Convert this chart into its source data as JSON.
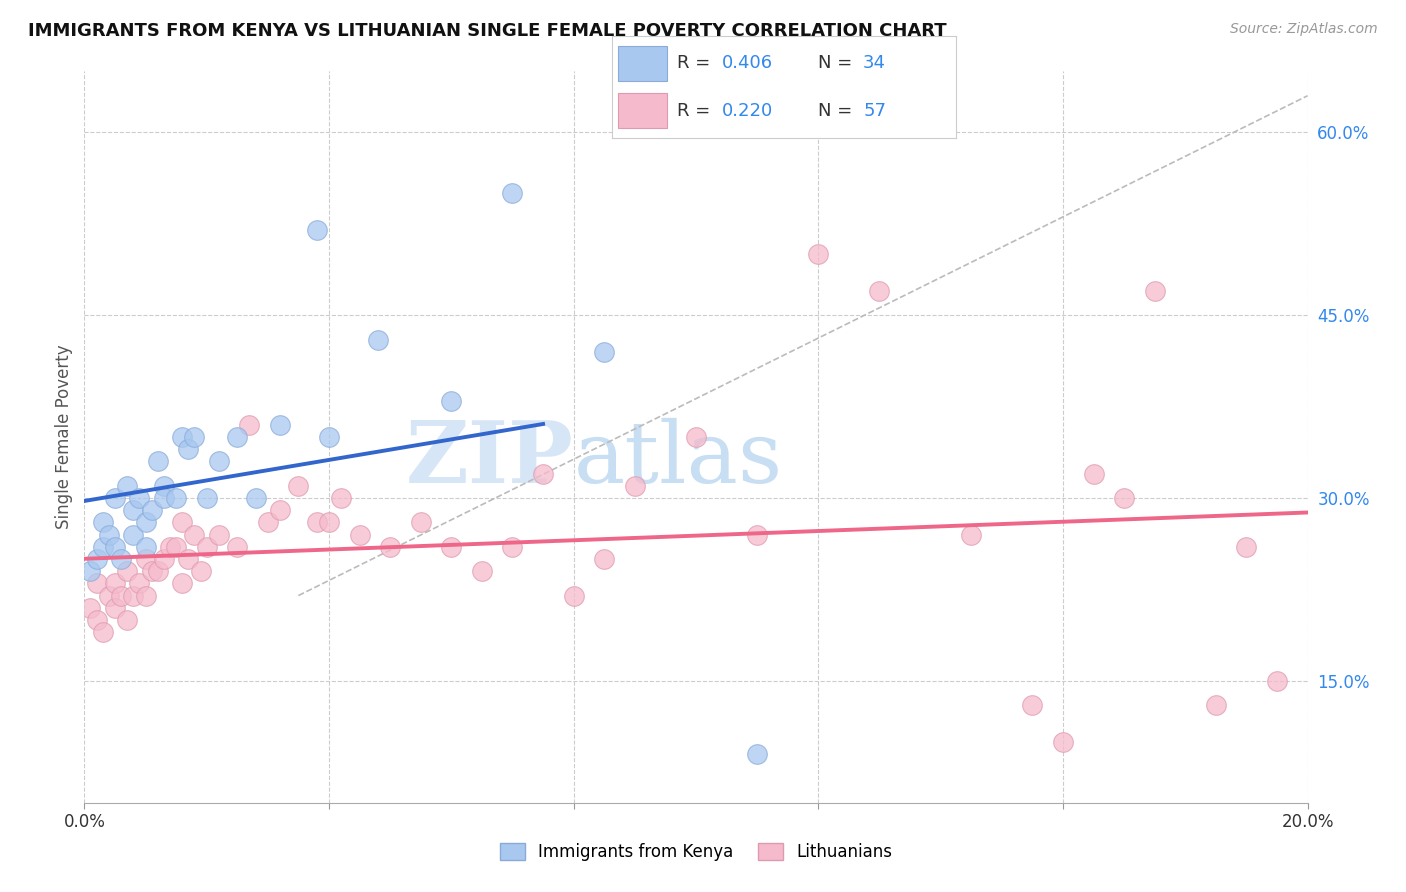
{
  "title": "IMMIGRANTS FROM KENYA VS LITHUANIAN SINGLE FEMALE POVERTY CORRELATION CHART",
  "source": "Source: ZipAtlas.com",
  "ylabel": "Single Female Poverty",
  "xlim": [
    0.0,
    0.2
  ],
  "ylim": [
    0.05,
    0.65
  ],
  "x_tick_positions": [
    0.0,
    0.04,
    0.08,
    0.12,
    0.16,
    0.2
  ],
  "y_ticks_right": [
    0.15,
    0.3,
    0.45,
    0.6
  ],
  "y_tick_labels_right": [
    "15.0%",
    "30.0%",
    "45.0%",
    "60.0%"
  ],
  "kenya_color": "#A8C8F0",
  "kenya_edge_color": "#8AABDA",
  "lithuanian_color": "#F5BBCC",
  "lithuanian_edge_color": "#E09AAF",
  "kenya_line_color": "#3366CC",
  "lithuanian_line_color": "#EE6688",
  "diagonal_line_color": "#BBBBBB",
  "watermark_zip": "ZIP",
  "watermark_atlas": "atlas",
  "legend_R_color": "#3388EE",
  "legend_N_color": "#3388EE",
  "kenya_scatter_x": [
    0.001,
    0.002,
    0.003,
    0.003,
    0.004,
    0.005,
    0.005,
    0.006,
    0.007,
    0.008,
    0.008,
    0.009,
    0.01,
    0.01,
    0.011,
    0.012,
    0.013,
    0.013,
    0.015,
    0.016,
    0.017,
    0.018,
    0.02,
    0.022,
    0.025,
    0.028,
    0.032,
    0.038,
    0.04,
    0.048,
    0.06,
    0.07,
    0.085,
    0.11
  ],
  "kenya_scatter_y": [
    0.24,
    0.25,
    0.26,
    0.28,
    0.27,
    0.26,
    0.3,
    0.25,
    0.31,
    0.29,
    0.27,
    0.3,
    0.26,
    0.28,
    0.29,
    0.33,
    0.31,
    0.3,
    0.3,
    0.35,
    0.34,
    0.35,
    0.3,
    0.33,
    0.35,
    0.3,
    0.36,
    0.52,
    0.35,
    0.43,
    0.38,
    0.55,
    0.42,
    0.09
  ],
  "lithuanian_scatter_x": [
    0.001,
    0.002,
    0.002,
    0.003,
    0.004,
    0.005,
    0.005,
    0.006,
    0.007,
    0.007,
    0.008,
    0.009,
    0.01,
    0.01,
    0.011,
    0.012,
    0.013,
    0.014,
    0.015,
    0.016,
    0.016,
    0.017,
    0.018,
    0.019,
    0.02,
    0.022,
    0.025,
    0.027,
    0.03,
    0.032,
    0.035,
    0.038,
    0.04,
    0.042,
    0.045,
    0.05,
    0.055,
    0.06,
    0.065,
    0.07,
    0.075,
    0.08,
    0.085,
    0.09,
    0.1,
    0.11,
    0.12,
    0.13,
    0.145,
    0.155,
    0.16,
    0.165,
    0.17,
    0.175,
    0.185,
    0.19,
    0.195
  ],
  "lithuanian_scatter_y": [
    0.21,
    0.2,
    0.23,
    0.19,
    0.22,
    0.21,
    0.23,
    0.22,
    0.2,
    0.24,
    0.22,
    0.23,
    0.25,
    0.22,
    0.24,
    0.24,
    0.25,
    0.26,
    0.26,
    0.23,
    0.28,
    0.25,
    0.27,
    0.24,
    0.26,
    0.27,
    0.26,
    0.36,
    0.28,
    0.29,
    0.31,
    0.28,
    0.28,
    0.3,
    0.27,
    0.26,
    0.28,
    0.26,
    0.24,
    0.26,
    0.32,
    0.22,
    0.25,
    0.31,
    0.35,
    0.27,
    0.5,
    0.47,
    0.27,
    0.13,
    0.1,
    0.32,
    0.3,
    0.47,
    0.13,
    0.26,
    0.15
  ]
}
